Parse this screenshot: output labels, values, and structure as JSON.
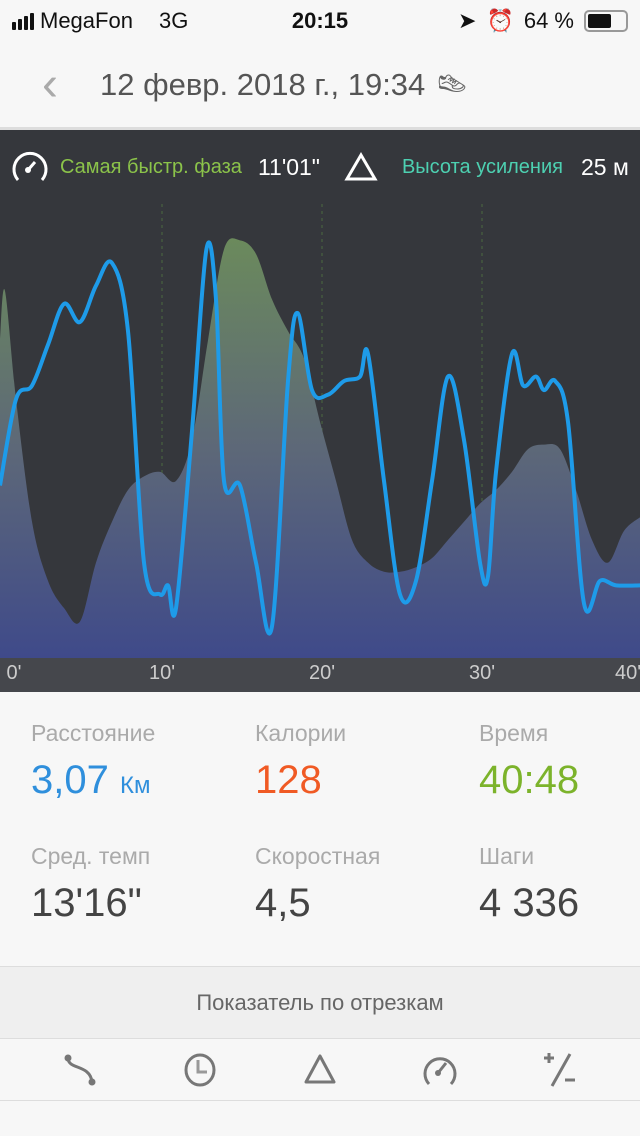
{
  "status": {
    "carrier": "MegaFon",
    "network": "3G",
    "time": "20:15",
    "battery": "64 %",
    "battery_level": 0.64
  },
  "header": {
    "title": "12 февр. 2018 г., 19:34",
    "icon": "shoe-icon"
  },
  "infobar": {
    "fastest_label": "Самая быстр. фаза",
    "fastest_value": "11'01\"",
    "gain_label": "Высота усиления",
    "gain_value": "25 м"
  },
  "colors": {
    "pace": "#1e9be9",
    "distance": "#2f8fdc",
    "calories": "#f05a24",
    "time": "#7cb32b",
    "fastest": "#8bc34a",
    "gain": "#4dd0b1"
  },
  "chart_data": {
    "type": "line",
    "x_ticks": [
      "0'",
      "10'",
      "20'",
      "30'",
      "40'"
    ],
    "xlim": [
      0,
      40
    ],
    "series": [
      {
        "kind": "area",
        "x": [
          0,
          0.3,
          1,
          2,
          3,
          4,
          5,
          6,
          7,
          8,
          9,
          10,
          11,
          12,
          13,
          14,
          15,
          16,
          17,
          18,
          19,
          20,
          21,
          22,
          23,
          24,
          25,
          26,
          27,
          28,
          29,
          30,
          31,
          32,
          33,
          34,
          35,
          36,
          37,
          38,
          39,
          40
        ],
        "values": [
          70,
          81,
          57,
          30,
          17,
          11,
          8,
          21,
          30,
          37,
          40,
          41,
          39,
          48,
          70,
          90,
          92,
          89,
          79,
          72,
          66,
          52,
          39,
          26,
          21,
          19,
          19,
          20,
          22,
          26,
          30,
          34,
          37,
          41,
          46,
          47,
          46,
          37,
          26,
          21,
          28,
          31
        ]
      },
      {
        "kind": "line",
        "x": [
          0,
          1,
          2,
          3,
          4,
          5,
          6,
          7,
          8,
          9,
          10,
          10.5,
          11,
          12,
          12.9,
          13.5,
          14,
          15,
          16,
          17,
          18,
          18.6,
          19.5,
          20.5,
          21.5,
          22.5,
          23,
          24,
          25,
          26,
          27,
          28,
          29,
          30,
          30.5,
          31,
          32,
          32.7,
          33.5,
          34,
          34.7,
          35.5,
          36.5,
          37.5,
          38.5,
          40
        ],
        "values": [
          38,
          57,
          60,
          69,
          78,
          74,
          82,
          87,
          72,
          21,
          14,
          16,
          11,
          50,
          90,
          79,
          39,
          38,
          21,
          7,
          61,
          76,
          59,
          58,
          61,
          62,
          67,
          39,
          14,
          17,
          39,
          62,
          48,
          21,
          18,
          41,
          67,
          60,
          62,
          59,
          61,
          52,
          12,
          17,
          16,
          16
        ]
      }
    ]
  },
  "stats": [
    {
      "label": "Расстояние",
      "value": "3,07",
      "unit": "Км"
    },
    {
      "label": "Калории",
      "value": "128"
    },
    {
      "label": "Время",
      "value": "40:48"
    },
    {
      "label": "Сред. темп",
      "value": "13'16\""
    },
    {
      "label": "Скоростная",
      "value": "4,5"
    },
    {
      "label": "Шаги",
      "value": "4 336"
    }
  ],
  "segments": {
    "title": "Показатель по отрезкам"
  },
  "tabs": [
    "route-icon",
    "clock-icon",
    "elevation-icon",
    "speedometer-icon",
    "plus-minus-icon"
  ]
}
